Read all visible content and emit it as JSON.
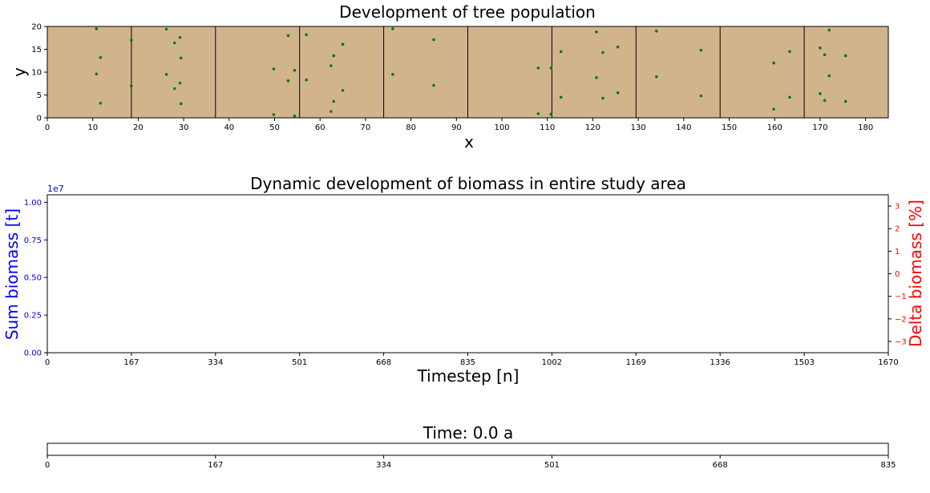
{
  "chart_data": [
    {
      "type": "scatter",
      "title": "Development of tree population",
      "xlabel": "x",
      "ylabel": "y",
      "xlim": [
        0,
        185
      ],
      "ylim": [
        0,
        20
      ],
      "xticks": [
        "0",
        "10",
        "20",
        "30",
        "40",
        "50",
        "60",
        "70",
        "80",
        "90",
        "100",
        "110",
        "120",
        "130",
        "140",
        "150",
        "160",
        "170",
        "180"
      ],
      "yticks": [
        "0",
        "5",
        "10",
        "15",
        "20"
      ],
      "background_color": "#d2b48c",
      "point_color": "#008000",
      "boundaries": [
        18.5,
        37,
        55.5,
        74,
        92.5,
        111,
        129.5,
        148,
        166.5
      ],
      "points": [
        [
          10.8,
          19.5
        ],
        [
          18.5,
          17.0
        ],
        [
          11.7,
          13.2
        ],
        [
          10.8,
          9.6
        ],
        [
          18.5,
          7.0
        ],
        [
          11.7,
          3.2
        ],
        [
          26.2,
          19.4
        ],
        [
          29.2,
          17.6
        ],
        [
          28.0,
          16.4
        ],
        [
          29.4,
          13.1
        ],
        [
          26.2,
          9.5
        ],
        [
          29.2,
          7.6
        ],
        [
          28.0,
          6.4
        ],
        [
          29.4,
          3.1
        ],
        [
          53.0,
          18.0
        ],
        [
          57.0,
          18.2
        ],
        [
          65.0,
          16.1
        ],
        [
          63.0,
          13.6
        ],
        [
          62.4,
          11.4
        ],
        [
          49.8,
          10.7
        ],
        [
          54.4,
          10.4
        ],
        [
          53.0,
          8.1
        ],
        [
          57.0,
          8.3
        ],
        [
          65.0,
          6.0
        ],
        [
          63.0,
          3.6
        ],
        [
          62.4,
          1.4
        ],
        [
          49.8,
          0.7
        ],
        [
          54.4,
          0.4
        ],
        [
          76.0,
          19.5
        ],
        [
          85.0,
          17.1
        ],
        [
          76.0,
          9.5
        ],
        [
          85.0,
          7.1
        ],
        [
          108.0,
          10.9
        ],
        [
          110.8,
          10.9
        ],
        [
          108.0,
          0.9
        ],
        [
          110.8,
          0.8
        ],
        [
          120.8,
          18.8
        ],
        [
          125.5,
          15.5
        ],
        [
          113.0,
          14.5
        ],
        [
          122.2,
          14.3
        ],
        [
          120.8,
          8.8
        ],
        [
          125.5,
          5.5
        ],
        [
          113.0,
          4.5
        ],
        [
          122.2,
          4.3
        ],
        [
          134.0,
          19.0
        ],
        [
          143.8,
          14.8
        ],
        [
          134.0,
          9.0
        ],
        [
          143.8,
          4.8
        ],
        [
          159.8,
          12.0
        ],
        [
          163.3,
          14.5
        ],
        [
          159.8,
          1.9
        ],
        [
          163.3,
          4.5
        ],
        [
          172.0,
          19.2
        ],
        [
          170.0,
          15.3
        ],
        [
          171.0,
          13.8
        ],
        [
          175.6,
          13.6
        ],
        [
          172.0,
          9.2
        ],
        [
          170.0,
          5.3
        ],
        [
          171.0,
          3.8
        ],
        [
          175.6,
          3.6
        ]
      ]
    },
    {
      "type": "line",
      "title": "Dynamic development of biomass in entire study area",
      "xlabel": "Timestep [n]",
      "ylabel": "Sum biomass [t]",
      "ylabel_right": "Delta biomass [%]",
      "xlim": [
        0,
        1670
      ],
      "ylim": [
        0,
        10500000
      ],
      "ylim_right": [
        -3.5,
        3.5
      ],
      "scale_note": "1e7",
      "xticks": [
        "0",
        "167",
        "334",
        "501",
        "668",
        "835",
        "1002",
        "1169",
        "1336",
        "1503",
        "1670"
      ],
      "yticks_left": [
        "0.00",
        "0.25",
        "0.50",
        "0.75",
        "1.00"
      ],
      "yticks_right": [
        "−3",
        "−2",
        "−1",
        "0",
        "1",
        "2",
        "3"
      ],
      "left_color": "#0000ff",
      "right_color": "#ff0000",
      "series": []
    },
    {
      "type": "bar",
      "title": "Time: 0.0 a",
      "xlim": [
        0,
        835
      ],
      "progress_fraction": 0,
      "xticks": [
        "0",
        "167",
        "334",
        "501",
        "668",
        "835"
      ]
    }
  ]
}
